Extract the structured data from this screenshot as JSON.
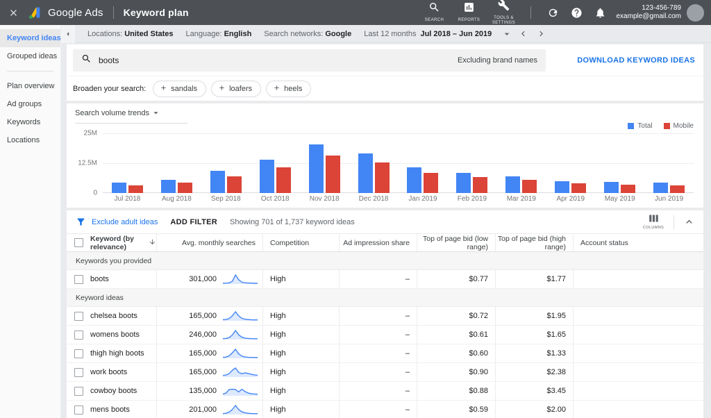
{
  "topbar": {
    "product": "Google Ads",
    "page_title": "Keyword plan",
    "nav": [
      {
        "label": "SEARCH"
      },
      {
        "label": "REPORTS"
      },
      {
        "label": "TOOLS & SETTINGS"
      }
    ],
    "account": {
      "phone": "123-456-789",
      "email": "example@gmail.com"
    }
  },
  "filterbar": {
    "settings": [
      {
        "label": "Locations:",
        "value": "United States"
      },
      {
        "label": "Language:",
        "value": "English"
      },
      {
        "label": "Search networks:",
        "value": "Google"
      }
    ],
    "date_period_label": "Last 12 months",
    "date_range": "Jul 2018 – Jun 2019"
  },
  "sidebar": {
    "items": [
      {
        "label": "Keyword ideas",
        "active": true
      },
      {
        "label": "Grouped ideas",
        "divider_after": true
      },
      {
        "label": "Plan overview"
      },
      {
        "label": "Ad groups"
      },
      {
        "label": "Keywords"
      },
      {
        "label": "Locations"
      }
    ]
  },
  "search": {
    "query": "boots",
    "exclusion_label": "Excluding brand names",
    "download_label": "DOWNLOAD KEYWORD IDEAS"
  },
  "broaden": {
    "label": "Broaden your search:",
    "chips": [
      "sandals",
      "loafers",
      "heels"
    ]
  },
  "chart_data": {
    "type": "bar",
    "title": "Search volume trends",
    "categories": [
      "Jul 2018",
      "Aug 2018",
      "Sep 2018",
      "Oct 2018",
      "Nov 2018",
      "Dec 2018",
      "Jan 2019",
      "Feb 2019",
      "Mar 2019",
      "Apr 2019",
      "May 2019",
      "Jun 2019"
    ],
    "series": [
      {
        "name": "Total",
        "color": "#4285f4",
        "values": [
          4.3,
          5.6,
          9.2,
          14.0,
          20.3,
          16.5,
          10.7,
          8.3,
          7.1,
          4.9,
          4.7,
          4.4
        ]
      },
      {
        "name": "Mobile",
        "color": "#db4437",
        "values": [
          3.2,
          4.4,
          7.0,
          10.8,
          15.6,
          12.9,
          8.5,
          6.6,
          5.5,
          4.0,
          3.6,
          3.3
        ]
      }
    ],
    "unit": "millions of monthly searches",
    "ylim": [
      0,
      25
    ],
    "yticks": [
      "25M",
      "12.5M",
      "0"
    ],
    "grid": true,
    "legend_position": "top-right"
  },
  "table": {
    "toolbar": {
      "exclude_adult_label": "Exclude adult ideas",
      "add_filter_label": "ADD FILTER",
      "showing_text": "Showing 701 of 1,737 keyword ideas",
      "columns_label": "COLUMNS"
    },
    "columns": [
      {
        "label": "Keyword (by relevance)",
        "align": "left"
      },
      {
        "label": "Avg. monthly searches",
        "align": "right"
      },
      {
        "label": "Competition",
        "align": "left"
      },
      {
        "label": "Ad impression share",
        "align": "right"
      },
      {
        "label": "Top of page bid (low range)",
        "align": "right"
      },
      {
        "label": "Top of page bid (high range)",
        "align": "right"
      },
      {
        "label": "Account status",
        "align": "left"
      }
    ],
    "sections": [
      {
        "title": "Keywords you provided",
        "rows": [
          {
            "keyword": "boots",
            "avg_monthly_searches": "301,000",
            "trend": [
              8,
              9,
              12,
              30,
              100,
              48,
              20,
              14,
              11,
              9,
              8,
              8
            ],
            "competition": "High",
            "ad_impression_share": "–",
            "bid_low": "$0.77",
            "bid_high": "$1.77",
            "account_status": ""
          }
        ]
      },
      {
        "title": "Keyword ideas",
        "rows": [
          {
            "keyword": "chelsea boots",
            "avg_monthly_searches": "165,000",
            "trend": [
              12,
              14,
              25,
              55,
              100,
              55,
              28,
              18,
              14,
              11,
              10,
              10
            ],
            "competition": "High",
            "ad_impression_share": "–",
            "bid_low": "$0.72",
            "bid_high": "$1.95",
            "account_status": ""
          },
          {
            "keyword": "womens boots",
            "avg_monthly_searches": "246,000",
            "trend": [
              10,
              12,
              22,
              50,
              100,
              52,
              26,
              16,
              12,
              10,
              9,
              9
            ],
            "competition": "High",
            "ad_impression_share": "–",
            "bid_low": "$0.61",
            "bid_high": "$1.65",
            "account_status": ""
          },
          {
            "keyword": "thigh high boots",
            "avg_monthly_searches": "165,000",
            "trend": [
              10,
              13,
              28,
              60,
              100,
              50,
              24,
              15,
              11,
              9,
              9,
              8
            ],
            "competition": "High",
            "ad_impression_share": "–",
            "bid_low": "$0.60",
            "bid_high": "$1.33",
            "account_status": ""
          },
          {
            "keyword": "work boots",
            "avg_monthly_searches": "165,000",
            "trend": [
              18,
              22,
              38,
              75,
              100,
              52,
              36,
              46,
              40,
              30,
              24,
              20
            ],
            "competition": "High",
            "ad_impression_share": "–",
            "bid_low": "$0.90",
            "bid_high": "$2.38",
            "account_status": ""
          },
          {
            "keyword": "cowboy boots",
            "avg_monthly_searches": "135,000",
            "trend": [
              20,
              30,
              70,
              72,
              70,
              42,
              72,
              48,
              30,
              24,
              20,
              18
            ],
            "competition": "High",
            "ad_impression_share": "–",
            "bid_low": "$0.88",
            "bid_high": "$3.45",
            "account_status": ""
          },
          {
            "keyword": "mens boots",
            "avg_monthly_searches": "201,000",
            "trend": [
              10,
              14,
              28,
              55,
              100,
              55,
              30,
              20,
              14,
              11,
              10,
              9
            ],
            "competition": "High",
            "ad_impression_share": "–",
            "bid_low": "$0.59",
            "bid_high": "$2.00",
            "account_status": ""
          }
        ]
      }
    ]
  },
  "colors": {
    "accent_blue": "#1a73e8",
    "bar_blue": "#4285f4",
    "bar_red": "#db4437",
    "topbar_bg": "#4d5156"
  }
}
